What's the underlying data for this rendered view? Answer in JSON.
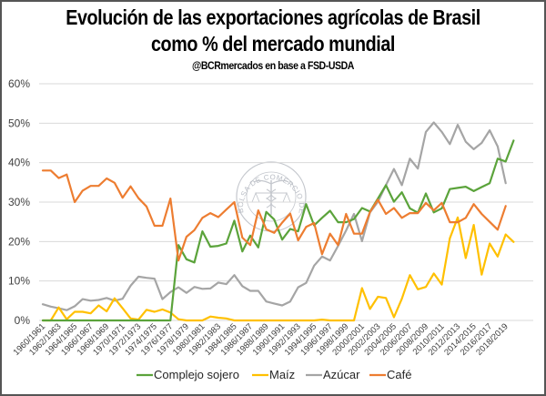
{
  "chart_data": {
    "type": "line",
    "title": "Evolución de las exportaciones agrícolas de Brasil",
    "subtitle": "como % del mercado mundial",
    "source": "@BCRmercados  en base a FSD-USDA",
    "watermark": "BOLSA DE COMERCIO DE ROSARIO",
    "xlabel": "",
    "ylabel": "",
    "ylim": [
      0,
      60
    ],
    "y_ticks": [
      "0%",
      "10%",
      "20%",
      "30%",
      "40%",
      "50%",
      "60%"
    ],
    "y_tick_values": [
      0,
      10,
      20,
      30,
      40,
      50,
      60
    ],
    "grid": true,
    "legend_position": "bottom",
    "x": [
      "1960/1961",
      "1961/1962",
      "1962/1963",
      "1963/1964",
      "1964/1965",
      "1965/1966",
      "1966/1967",
      "1967/1968",
      "1968/1969",
      "1969/1970",
      "1970/1971",
      "1971/1972",
      "1972/1973",
      "1973/1974",
      "1974/1975",
      "1975/1976",
      "1976/1977",
      "1977/1978",
      "1978/1979",
      "1979/1980",
      "1980/1981",
      "1981/1982",
      "1982/1983",
      "1983/1984",
      "1984/1985",
      "1985/1986",
      "1986/1987",
      "1987/1988",
      "1988/1989",
      "1989/1990",
      "1990/1991",
      "1991/1992",
      "1992/1993",
      "1993/1994",
      "1994/1995",
      "1995/1996",
      "1996/1997",
      "1997/1998",
      "1998/1999",
      "1999/2000",
      "2000/2001",
      "2001/2002",
      "2002/2003",
      "2003/2004",
      "2004/2005",
      "2005/2006",
      "2006/2007",
      "2007/2008",
      "2008/2009",
      "2009/2010",
      "2010/2011",
      "2011/2012",
      "2012/2013",
      "2013/2014",
      "2014/2015",
      "2015/2016",
      "2016/2017",
      "2017/2018",
      "2018/2019",
      "2019/2020"
    ],
    "x_tick_labels": [
      "1960/1961",
      "1962/1963",
      "1964/1965",
      "1966/1967",
      "1968/1969",
      "1970/1971",
      "1972/1973",
      "1974/1975",
      "1976/1977",
      "1978/1979",
      "1980/1981",
      "1982/1983",
      "1984/1985",
      "1986/1987",
      "1988/1989",
      "1990/1991",
      "1992/1993",
      "1994/1995",
      "1996/1997",
      "1998/1999",
      "2000/2001",
      "2002/2003",
      "2004/2005",
      "2006/2007",
      "2008/2009",
      "2010/2011",
      "2012/2013",
      "2014/2015",
      "2016/2017",
      "2018/2019"
    ],
    "series": [
      {
        "name": "Complejo sojero",
        "color": "#5ba33b",
        "values": [
          0,
          0,
          0,
          0,
          0,
          0,
          0,
          0,
          0,
          0,
          0,
          0,
          0,
          0,
          0,
          0,
          0,
          19.1,
          15.5,
          14.7,
          22.6,
          18.7,
          18.9,
          19.5,
          25.3,
          17.5,
          21.5,
          18.5,
          27.5,
          25.6,
          20.5,
          23.2,
          22.6,
          29.5,
          24.1,
          26.0,
          27.8,
          24.9,
          24.9,
          25.7,
          28.5,
          27.6,
          30.9,
          34.3,
          30.1,
          32.5,
          28.4,
          27.3,
          32.2,
          27.4,
          28.4,
          33.3,
          33.6,
          33.9,
          32.8,
          33.8,
          34.8,
          41.0,
          40.3,
          45.6
        ]
      },
      {
        "name": "Maíz",
        "color": "#ffc000",
        "values": [
          0,
          0,
          3.3,
          0.3,
          2.2,
          2.2,
          1.8,
          3.8,
          2.3,
          5.6,
          3.1,
          0.5,
          0.2,
          2.7,
          2.2,
          2.8,
          2.0,
          0.3,
          0,
          0,
          0,
          1.0,
          0.7,
          0.5,
          0,
          0,
          0,
          0,
          0,
          0,
          0,
          0,
          0,
          0,
          0,
          0.2,
          0,
          0,
          0,
          0,
          8.2,
          2.9,
          6.0,
          5.7,
          0.8,
          5.5,
          11.5,
          7.9,
          8.5,
          11.9,
          9.1,
          20.8,
          26.1,
          15.8,
          24.2,
          11.6,
          19.5,
          16.2,
          21.8,
          19.9
        ]
      },
      {
        "name": "Azúcar",
        "color": "#a5a5a5",
        "values": [
          4.1,
          3.5,
          3.1,
          2.6,
          3.6,
          5.4,
          5.0,
          5.2,
          5.7,
          5.0,
          5.5,
          8.8,
          11.1,
          10.8,
          10.6,
          5.4,
          7.2,
          8.4,
          7.0,
          8.5,
          8.0,
          8.1,
          9.6,
          9.2,
          11.5,
          8.7,
          7.5,
          7.5,
          4.8,
          4.3,
          3.8,
          4.8,
          8.4,
          9.5,
          13.9,
          16.2,
          15.2,
          18.9,
          22.8,
          27.0,
          20.1,
          27.4,
          30.1,
          34.3,
          38.4,
          34.3,
          41.0,
          38.5,
          47.8,
          50.2,
          47.8,
          44.7,
          49.6,
          45.3,
          43.4,
          45.0,
          48.2,
          44.1,
          34.8,
          null
        ]
      },
      {
        "name": "Café",
        "color": "#ed7d31",
        "values": [
          38.0,
          38.0,
          36.1,
          37.0,
          30.0,
          32.9,
          34.1,
          34.1,
          36.0,
          34.9,
          31.1,
          34.0,
          31.0,
          28.9,
          24.0,
          24.0,
          30.9,
          15.2,
          21.2,
          22.9,
          26.0,
          27.2,
          26.2,
          28.1,
          30.0,
          21.0,
          19.1,
          27.9,
          23.1,
          22.2,
          24.8,
          27.1,
          20.3,
          23.7,
          24.7,
          16.8,
          22.0,
          19.1,
          27.0,
          22.0,
          22.0,
          27.5,
          30.6,
          27.0,
          28.5,
          26.0,
          27.2,
          27.2,
          29.8,
          27.9,
          29.8,
          24.9,
          24.9,
          26.0,
          29.5,
          27.0,
          25.0,
          23.0,
          29.0,
          null
        ]
      }
    ],
    "gridline_color": "#d9d9d9"
  }
}
